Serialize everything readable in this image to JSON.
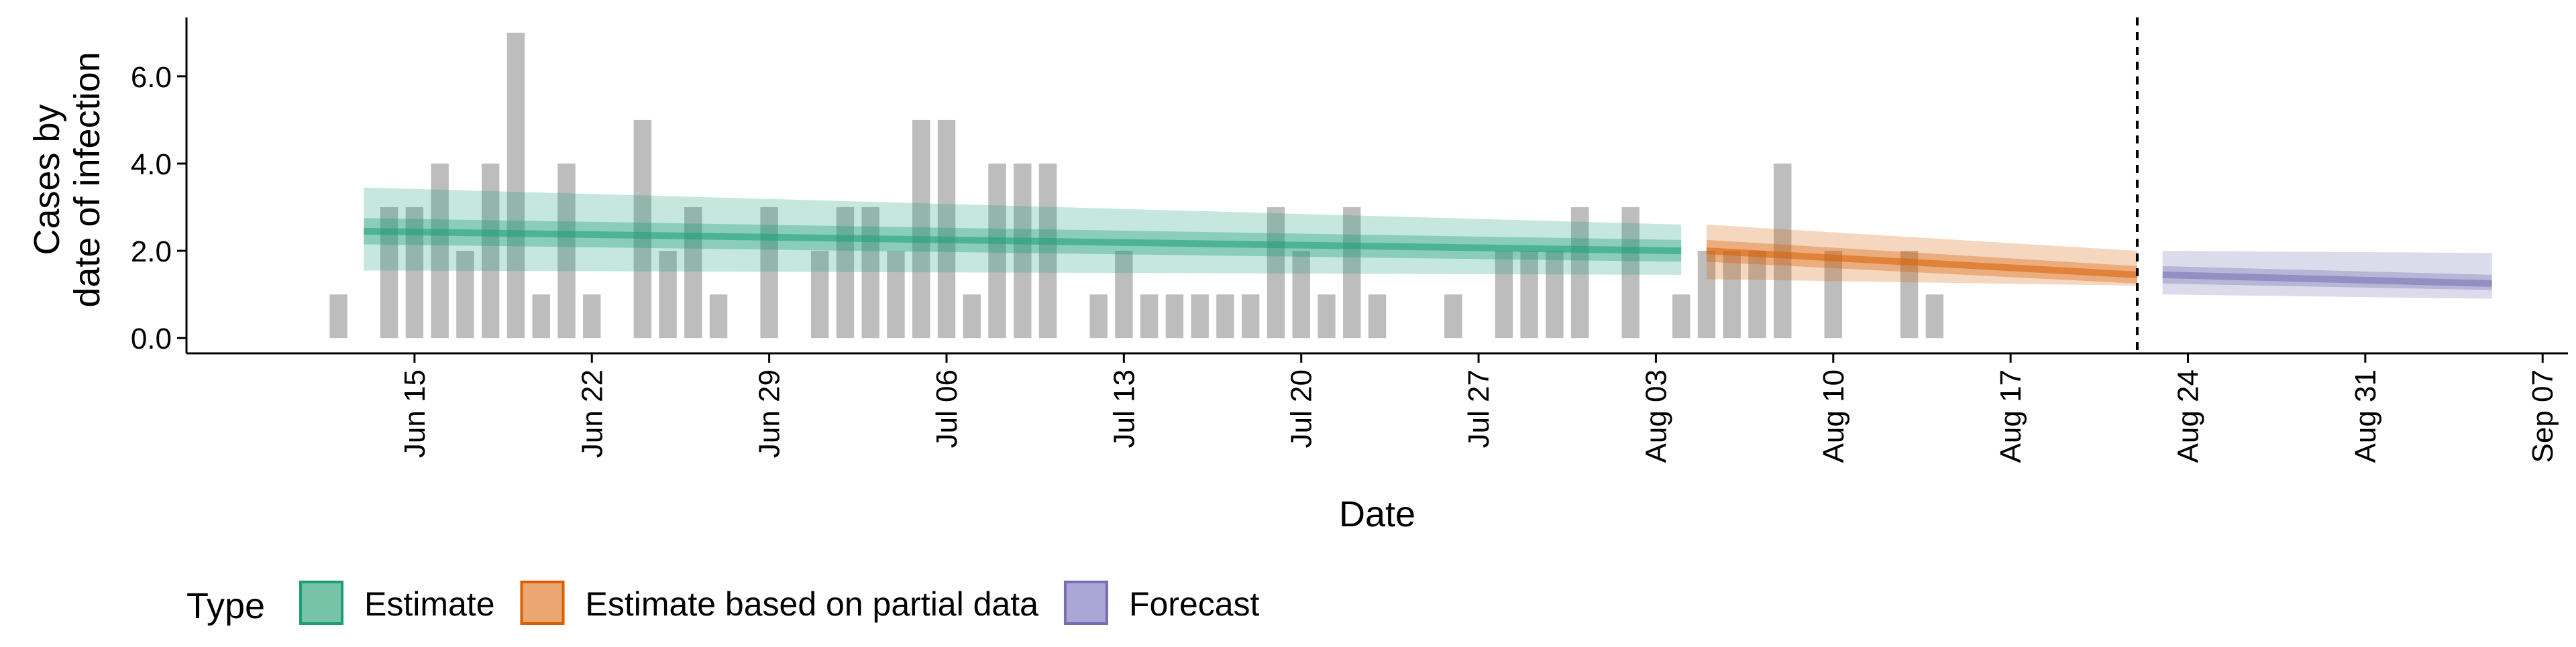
{
  "chart_data": {
    "type": "bar",
    "xlabel": "Date",
    "ylabel_lines": [
      "Cases by",
      "date of infection"
    ],
    "ylim": [
      -0.35,
      7.35
    ],
    "xlim_dates": [
      "2020-06-06",
      "2020-09-08"
    ],
    "y_ticks": [
      {
        "value": 0,
        "label": "0.0"
      },
      {
        "value": 2,
        "label": "2.0"
      },
      {
        "value": 4,
        "label": "4.0"
      },
      {
        "value": 6,
        "label": "6.0"
      }
    ],
    "x_ticks": [
      {
        "date": "2020-06-15",
        "label": "Jun 15"
      },
      {
        "date": "2020-06-22",
        "label": "Jun 22"
      },
      {
        "date": "2020-06-29",
        "label": "Jun 29"
      },
      {
        "date": "2020-07-06",
        "label": "Jul 06"
      },
      {
        "date": "2020-07-13",
        "label": "Jul 13"
      },
      {
        "date": "2020-07-20",
        "label": "Jul 20"
      },
      {
        "date": "2020-07-27",
        "label": "Jul 27"
      },
      {
        "date": "2020-08-03",
        "label": "Aug 03"
      },
      {
        "date": "2020-08-10",
        "label": "Aug 10"
      },
      {
        "date": "2020-08-17",
        "label": "Aug 17"
      },
      {
        "date": "2020-08-24",
        "label": "Aug 24"
      },
      {
        "date": "2020-08-31",
        "label": "Aug 31"
      },
      {
        "date": "2020-09-07",
        "label": "Sep 07"
      }
    ],
    "cut_date": "2020-08-22",
    "bars_start_date": "2020-06-12",
    "bar_values": [
      1,
      0,
      3,
      3,
      4,
      2,
      4,
      7,
      1,
      4,
      1,
      0,
      5,
      2,
      3,
      1,
      0,
      3,
      0,
      2,
      3,
      3,
      2,
      5,
      5,
      1,
      4,
      4,
      4,
      0,
      1,
      2,
      1,
      1,
      1,
      1,
      1,
      3,
      2,
      1,
      3,
      1,
      0,
      0,
      1,
      0,
      2,
      2,
      2,
      3,
      0,
      3,
      0,
      1,
      2,
      2,
      2,
      4,
      0,
      2,
      0,
      0,
      2,
      1
    ],
    "legend": {
      "title": "Type",
      "placement": "bottom-left",
      "items": [
        {
          "label": "Estimate",
          "fill": "#76c3a8",
          "stroke": "#1b9e77"
        },
        {
          "label": "Estimate based on partial data",
          "fill": "#eca672",
          "stroke": "#d95f02"
        },
        {
          "label": "Forecast",
          "fill": "#aba6d4",
          "stroke": "#7570b3"
        }
      ]
    },
    "bar_color": "#bdbdbd",
    "series": [
      {
        "name": "Estimate",
        "color": "#1b9e77",
        "start_date": "2020-06-13",
        "end_date": "2020-08-04",
        "median": [
          2.45,
          2.0
        ],
        "inner": [
          [
            2.15,
            2.75
          ],
          [
            1.75,
            2.25
          ]
        ],
        "outer": [
          [
            1.55,
            3.45
          ],
          [
            1.45,
            2.6
          ]
        ]
      },
      {
        "name": "Estimate based on partial data",
        "color": "#d95f02",
        "start_date": "2020-08-05",
        "end_date": "2020-08-22",
        "median": [
          2.0,
          1.45
        ],
        "inner": [
          [
            1.75,
            2.25
          ],
          [
            1.25,
            1.65
          ]
        ],
        "outer": [
          [
            1.35,
            2.6
          ],
          [
            1.2,
            2.0
          ]
        ]
      },
      {
        "name": "Forecast",
        "color": "#7570b3",
        "start_date": "2020-08-23",
        "end_date": "2020-09-05",
        "median": [
          1.45,
          1.25
        ],
        "inner": [
          [
            1.25,
            1.65
          ],
          [
            1.1,
            1.45
          ]
        ],
        "outer": [
          [
            1.0,
            2.0
          ],
          [
            0.9,
            1.95
          ]
        ]
      }
    ]
  }
}
